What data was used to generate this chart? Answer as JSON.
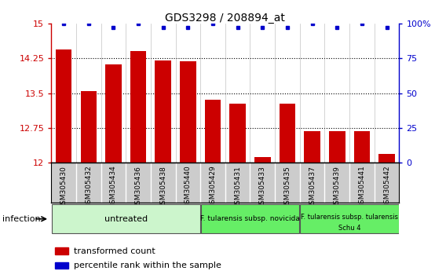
{
  "title": "GDS3298 / 208894_at",
  "categories": [
    "GSM305430",
    "GSM305432",
    "GSM305434",
    "GSM305436",
    "GSM305438",
    "GSM305440",
    "GSM305429",
    "GSM305431",
    "GSM305433",
    "GSM305435",
    "GSM305437",
    "GSM305439",
    "GSM305441",
    "GSM305442"
  ],
  "red_values": [
    14.45,
    13.55,
    14.12,
    14.4,
    14.2,
    14.18,
    13.35,
    13.27,
    12.12,
    13.28,
    12.68,
    12.68,
    12.68,
    12.18
  ],
  "blue_values": [
    100,
    100,
    97,
    100,
    97,
    97,
    100,
    97,
    97,
    97,
    100,
    97,
    100,
    97
  ],
  "ylim_left": [
    12,
    15
  ],
  "ylim_right": [
    0,
    100
  ],
  "yticks_left": [
    12,
    12.75,
    13.5,
    14.25,
    15
  ],
  "yticks_right": [
    0,
    25,
    50,
    75,
    100
  ],
  "bar_color": "#cc0000",
  "dot_color": "#0000cc",
  "group_untreated_color": "#ccf5cc",
  "group_novicida_color": "#66ee66",
  "group_tularensis_color": "#66ee66",
  "xtick_bg_color": "#cccccc",
  "group_border_color": "#555555",
  "infection_label": "infection",
  "legend_red_label": "transformed count",
  "legend_blue_label": "percentile rank within the sample"
}
